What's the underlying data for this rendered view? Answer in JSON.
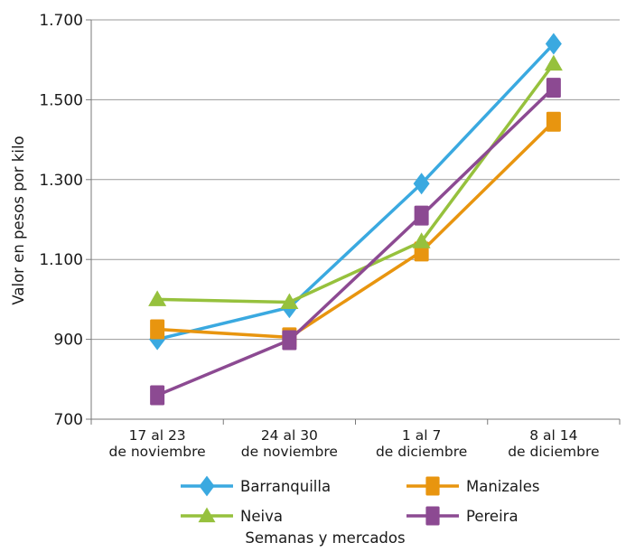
{
  "chart_data": {
    "type": "line",
    "title": "",
    "xlabel": "Semanas y mercados",
    "ylabel": "Valor en pesos por kilo",
    "ylim": [
      700,
      1700
    ],
    "yticks": [
      700,
      900,
      1100,
      1300,
      1500,
      1700
    ],
    "ytick_labels": [
      "700",
      "900",
      "1.100",
      "1.300",
      "1.500",
      "1.700"
    ],
    "categories": [
      [
        "17 al 23",
        "de noviembre"
      ],
      [
        "24 al 30",
        "de noviembre"
      ],
      [
        "1 al 7",
        "de diciembre"
      ],
      [
        "8 al 14",
        "de diciembre"
      ]
    ],
    "grid": "horizontal",
    "legend_position": "bottom",
    "series": [
      {
        "name": "Barranquilla",
        "color": "#3aa9e0",
        "marker": "diamond",
        "values": [
          900,
          980,
          1290,
          1640
        ]
      },
      {
        "name": "Manizales",
        "color": "#e8950f",
        "marker": "square",
        "values": [
          925,
          905,
          1120,
          1445
        ]
      },
      {
        "name": "Neiva",
        "color": "#96c13d",
        "marker": "triangle",
        "values": [
          1000,
          993,
          1145,
          1590
        ]
      },
      {
        "name": "Pereira",
        "color": "#8c4a92",
        "marker": "square",
        "values": [
          760,
          898,
          1210,
          1530
        ]
      }
    ]
  }
}
